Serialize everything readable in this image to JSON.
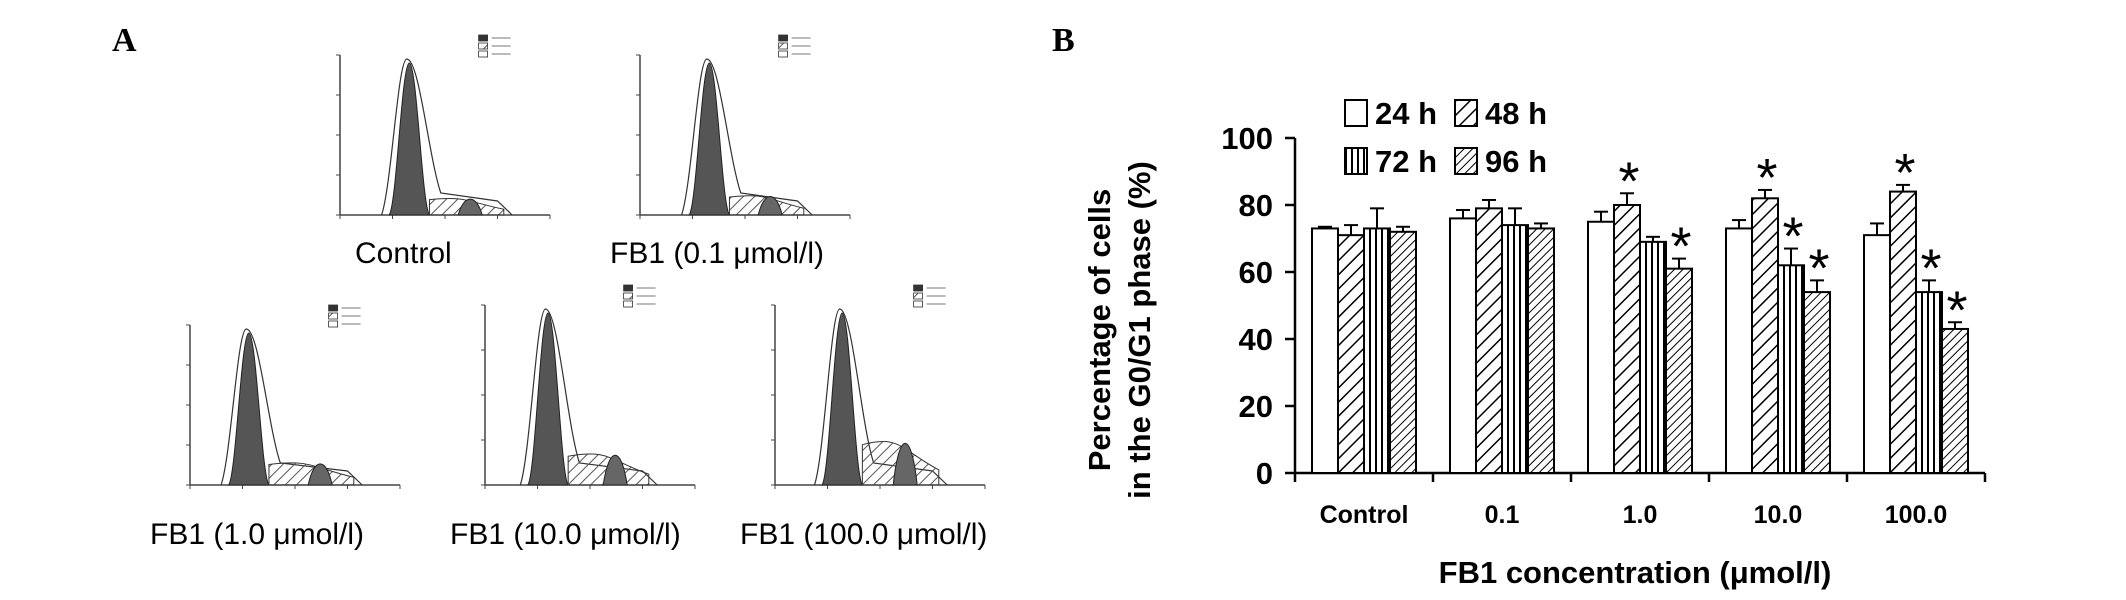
{
  "panel_a": {
    "label": "A",
    "histograms": [
      {
        "caption": "Control"
      },
      {
        "caption": "FB1 (0.1 μmol/l)"
      },
      {
        "caption": "FB1 (1.0 μmol/l)"
      },
      {
        "caption": "FB1 (10.0 μmol/l)"
      },
      {
        "caption": "FB1 (100.0 μmol/l)"
      }
    ]
  },
  "panel_b": {
    "label": "B"
  },
  "chart_data": {
    "type": "bar",
    "title": "",
    "ylabel": "Percentage of cells in the G0/G1 phase (%)",
    "ylabel_lines": [
      "Percentage of cells",
      "in the G0/G1 phase (%)"
    ],
    "xlabel": "FB1 concentration (μmol/l)",
    "ylim": [
      0,
      100
    ],
    "yticks": [
      0,
      20,
      40,
      60,
      80,
      100
    ],
    "categories": [
      "Control",
      "0.1",
      "1.0",
      "10.0",
      "100.0"
    ],
    "legend_position": "top-left",
    "grid": false,
    "series": [
      {
        "name": "24 h",
        "pattern": "none",
        "values": [
          73,
          76,
          75,
          73,
          71
        ],
        "errors": [
          0.5,
          2.5,
          3,
          2.5,
          3.5
        ],
        "significant": [
          false,
          false,
          false,
          false,
          false
        ]
      },
      {
        "name": "48 h",
        "pattern": "diagonal-right",
        "values": [
          71,
          79,
          80,
          82,
          84
        ],
        "errors": [
          3,
          2.5,
          3.5,
          2.5,
          2
        ],
        "significant": [
          false,
          false,
          true,
          true,
          true
        ]
      },
      {
        "name": "72 h",
        "pattern": "vertical",
        "values": [
          73,
          74,
          69,
          62,
          54
        ],
        "errors": [
          6,
          5,
          1.5,
          5,
          3.5
        ],
        "significant": [
          false,
          false,
          false,
          true,
          true
        ]
      },
      {
        "name": "96 h",
        "pattern": "diagonal-fine",
        "values": [
          72,
          73,
          61,
          54,
          43
        ],
        "errors": [
          1.5,
          1.5,
          3,
          3.5,
          2
        ],
        "significant": [
          false,
          false,
          true,
          true,
          true
        ]
      }
    ],
    "significance_marker": "*"
  }
}
